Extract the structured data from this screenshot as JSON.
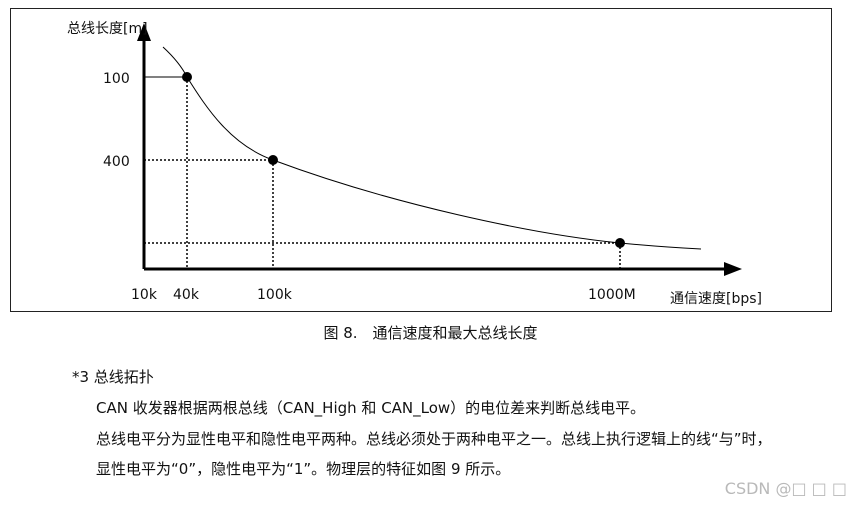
{
  "figure": {
    "y_axis_label": "总线长度[m]",
    "x_axis_label": "通信速度[bps]",
    "y_tick_labels": [
      "100",
      "400"
    ],
    "x_tick_labels": [
      "10k",
      "40k",
      "100k",
      "1000M"
    ]
  },
  "chart_data": {
    "type": "line",
    "xlabel": "通信速度[bps]",
    "ylabel": "总线长度[m]",
    "x_ticks": [
      "10k",
      "40k",
      "100k",
      "1000M"
    ],
    "y_ticks": [
      "100",
      "400"
    ],
    "points": [
      {
        "x": "40k",
        "y": "100"
      },
      {
        "x": "100k",
        "y": "400"
      },
      {
        "x": "1000M",
        "y": ""
      }
    ]
  },
  "caption": "图 8.　通信速度和最大总线长度",
  "section": {
    "heading": "*3 总线拓扑",
    "paragraphs": [
      "CAN 收发器根据两根总线（CAN_High 和 CAN_Low）的电位差来判断总线电平。",
      "总线电平分为显性电平和隐性电平两种。总线必须处于两种电平之一。总线上执行逻辑上的线“与”时，",
      "显性电平为“0”，隐性电平为“1”。物理层的特征如图 9 所示。"
    ]
  },
  "watermark": "CSDN @□ □ □"
}
